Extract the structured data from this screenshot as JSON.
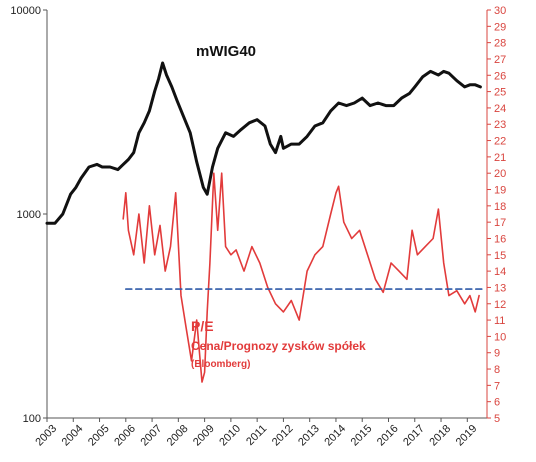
{
  "chart_data": {
    "type": "line",
    "title": "mWIG40",
    "annotations": [
      "P/E",
      "Cena/Prognozy zysków spółek",
      "(Bloomberg)"
    ],
    "x_ticks": [
      "2003",
      "2004",
      "2005",
      "2006",
      "2007",
      "2008",
      "2009",
      "2010",
      "2011",
      "2012",
      "2013",
      "2014",
      "2015",
      "2016",
      "2017",
      "2018",
      "2019"
    ],
    "y_left": {
      "scale": "log",
      "range": [
        100,
        10000
      ],
      "ticks": [
        "100",
        "1000",
        "10000"
      ]
    },
    "y_right": {
      "range": [
        5,
        30
      ],
      "ticks": [
        "5",
        "6",
        "7",
        "8",
        "9",
        "10",
        "11",
        "12",
        "13",
        "14",
        "15",
        "16",
        "17",
        "18",
        "19",
        "20",
        "21",
        "22",
        "23",
        "24",
        "25",
        "26",
        "27",
        "28",
        "29",
        "30"
      ]
    },
    "grid": false,
    "colors": {
      "index": "#111111",
      "pe": "#e23b3b",
      "reference": "#2e5aa8",
      "right_axis": "#d9453f"
    },
    "series": [
      {
        "axis": "left",
        "x": [
          2003.0,
          2003.3,
          2003.6,
          2003.9,
          2004.1,
          2004.3,
          2004.6,
          2004.9,
          2005.1,
          2005.4,
          2005.7,
          2005.9,
          2006.1,
          2006.3,
          2006.5,
          2006.7,
          2006.9,
          2007.1,
          2007.25,
          2007.4,
          2007.55,
          2007.75,
          2007.95,
          2008.2,
          2008.45,
          2008.7,
          2008.95,
          2009.1,
          2009.3,
          2009.5,
          2009.8,
          2010.1,
          2010.4,
          2010.7,
          2011.0,
          2011.3,
          2011.5,
          2011.7,
          2011.9,
          2012.0,
          2012.3,
          2012.6,
          2012.9,
          2013.2,
          2013.5,
          2013.8,
          2014.1,
          2014.4,
          2014.7,
          2015.0,
          2015.3,
          2015.6,
          2015.9,
          2016.2,
          2016.5,
          2016.8,
          2017.0,
          2017.3,
          2017.6,
          2017.9,
          2018.1,
          2018.3,
          2018.6,
          2018.9,
          2019.1,
          2019.3,
          2019.5
        ],
        "values": [
          900,
          900,
          1000,
          1250,
          1350,
          1500,
          1700,
          1750,
          1700,
          1700,
          1650,
          1750,
          1850,
          2000,
          2500,
          2800,
          3200,
          4000,
          4600,
          5500,
          4800,
          4200,
          3600,
          3000,
          2500,
          1800,
          1350,
          1250,
          1700,
          2100,
          2500,
          2400,
          2600,
          2800,
          2900,
          2700,
          2200,
          2000,
          2400,
          2100,
          2200,
          2200,
          2400,
          2700,
          2800,
          3200,
          3500,
          3400,
          3500,
          3700,
          3400,
          3500,
          3400,
          3400,
          3700,
          3900,
          4200,
          4700,
          5000,
          4800,
          5000,
          4900,
          4500,
          4200,
          4300,
          4300,
          4200
        ]
      },
      {
        "axis": "right",
        "x": [
          2005.9,
          2006.0,
          2006.1,
          2006.3,
          2006.5,
          2006.7,
          2006.9,
          2007.1,
          2007.3,
          2007.5,
          2007.7,
          2007.9,
          2008.1,
          2008.3,
          2008.5,
          2008.7,
          2008.9,
          2009.0,
          2009.1,
          2009.2,
          2009.35,
          2009.5,
          2009.65,
          2009.8,
          2010.0,
          2010.2,
          2010.5,
          2010.8,
          2011.1,
          2011.4,
          2011.7,
          2012.0,
          2012.3,
          2012.6,
          2012.9,
          2013.2,
          2013.5,
          2013.8,
          2014.0,
          2014.1,
          2014.3,
          2014.6,
          2014.9,
          2015.2,
          2015.5,
          2015.8,
          2016.1,
          2016.4,
          2016.7,
          2016.9,
          2017.1,
          2017.4,
          2017.7,
          2017.9,
          2018.1,
          2018.3,
          2018.6,
          2018.9,
          2019.1,
          2019.3,
          2019.45
        ],
        "values": [
          17.2,
          18.8,
          16.5,
          15.0,
          17.5,
          14.5,
          18.0,
          15.0,
          16.8,
          14.0,
          15.5,
          18.8,
          12.5,
          10.5,
          8.5,
          11.0,
          7.2,
          7.8,
          11.5,
          14.5,
          20.0,
          16.5,
          20.0,
          15.5,
          15.0,
          15.3,
          14.0,
          15.5,
          14.5,
          13.0,
          12.0,
          11.5,
          12.2,
          11.0,
          14.0,
          15.0,
          15.5,
          17.5,
          18.8,
          19.2,
          17.0,
          16.0,
          16.5,
          15.0,
          13.5,
          12.7,
          14.5,
          14.0,
          13.5,
          16.5,
          15.0,
          15.5,
          16.0,
          17.8,
          14.5,
          12.5,
          12.8,
          12.0,
          12.5,
          11.5,
          12.5
        ]
      },
      {
        "axis": "right",
        "x": [
          2006.0,
          2019.6
        ],
        "values": [
          12.9,
          12.9
        ]
      }
    ]
  }
}
